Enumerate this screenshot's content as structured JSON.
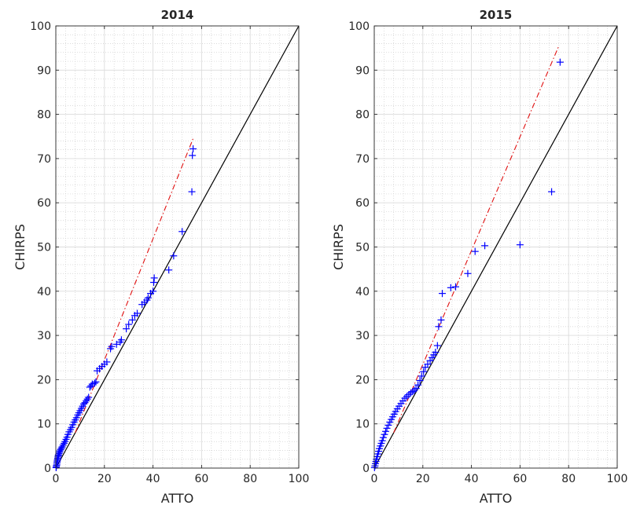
{
  "chart_data": [
    {
      "type": "scatter",
      "title": "2014",
      "xlabel": "ATTO",
      "ylabel": "CHIRPS",
      "xlim": [
        0,
        100
      ],
      "ylim": [
        0,
        100
      ],
      "x_ticks": [
        "0",
        "20",
        "40",
        "60",
        "80",
        "100"
      ],
      "y_ticks": [
        "0",
        "10",
        "20",
        "30",
        "40",
        "50",
        "60",
        "70",
        "80",
        "90",
        "100"
      ],
      "grid": true,
      "minor_grid": true,
      "colors": {
        "points": "#0000ff",
        "identity_line": "#000000",
        "fit_line": "#e01010"
      },
      "identity_line": {
        "x": [
          0,
          100
        ],
        "y": [
          0,
          100
        ]
      },
      "fit_line": {
        "x": [
          8,
          56.5
        ],
        "y": [
          8,
          74.5
        ]
      },
      "series": [
        {
          "marker": "+",
          "x": [
            0.1,
            0.2,
            0.3,
            0.4,
            0.5,
            0.6,
            0.7,
            0.8,
            0.9,
            1.0,
            1.1,
            1.3,
            1.5,
            1.7,
            2.0,
            2.3,
            2.6,
            3.0,
            3.4,
            3.8,
            4.2,
            4.6,
            5.0,
            5.5,
            6.0,
            6.5,
            7.0,
            7.5,
            8.0,
            8.5,
            9.0,
            9.5,
            10.0,
            10.5,
            11.0,
            11.5,
            12.0,
            12.5,
            13.0,
            13.5,
            14.0,
            14.5,
            15.0,
            16.0,
            16.5,
            17.0,
            18.0,
            19.0,
            20.0,
            21.0,
            22.5,
            23.0,
            25.0,
            26.5,
            27.0,
            29.0,
            30.0,
            31.5,
            32.5,
            33.5,
            35.5,
            36.5,
            37.5,
            38.0,
            39.0,
            40.0,
            40.3,
            40.5,
            46.5,
            48.5,
            52.0,
            56.0,
            56.2,
            56.5
          ],
          "y": [
            0.1,
            0.3,
            0.6,
            0.9,
            1.3,
            1.6,
            1.9,
            2.2,
            2.5,
            2.8,
            3.0,
            3.3,
            3.6,
            3.9,
            4.2,
            4.5,
            4.8,
            5.2,
            5.6,
            6.0,
            6.5,
            7.0,
            7.6,
            8.2,
            8.7,
            9.2,
            9.8,
            10.4,
            10.9,
            11.4,
            12.0,
            12.5,
            13.0,
            13.5,
            14.0,
            14.5,
            14.8,
            15.2,
            15.6,
            16.0,
            18.3,
            18.6,
            19.0,
            19.2,
            19.5,
            22.0,
            22.5,
            23.0,
            23.5,
            24.0,
            27.0,
            27.5,
            28.0,
            28.5,
            29.0,
            31.5,
            32.5,
            33.5,
            34.5,
            35.0,
            37.0,
            37.5,
            38.0,
            38.5,
            39.5,
            40.0,
            42.0,
            43.0,
            44.8,
            48.0,
            53.5,
            62.5,
            70.7,
            72.2
          ]
        }
      ]
    },
    {
      "type": "scatter",
      "title": "2015",
      "xlabel": "ATTO",
      "ylabel": "CHIRPS",
      "xlim": [
        0,
        100
      ],
      "ylim": [
        0,
        100
      ],
      "x_ticks": [
        "0",
        "20",
        "40",
        "60",
        "80",
        "100"
      ],
      "y_ticks": [
        "0",
        "10",
        "20",
        "30",
        "40",
        "50",
        "60",
        "70",
        "80",
        "90",
        "100"
      ],
      "grid": true,
      "minor_grid": true,
      "colors": {
        "points": "#0000ff",
        "identity_line": "#000000",
        "fit_line": "#e01010"
      },
      "identity_line": {
        "x": [
          0,
          100
        ],
        "y": [
          0,
          100
        ]
      },
      "fit_line": {
        "x": [
          8,
          76
        ],
        "y": [
          8,
          95.5
        ]
      },
      "series": [
        {
          "marker": "+",
          "x": [
            0.1,
            0.3,
            0.5,
            0.7,
            0.9,
            1.2,
            1.5,
            1.8,
            2.1,
            2.5,
            2.9,
            3.3,
            3.7,
            4.2,
            4.7,
            5.2,
            5.8,
            6.4,
            7.0,
            7.6,
            8.2,
            8.8,
            9.5,
            10.2,
            11.0,
            11.8,
            12.6,
            13.4,
            14.2,
            15.0,
            15.8,
            16.5,
            17.2,
            18.0,
            18.8,
            19.5,
            20.3,
            21.0,
            22.0,
            23.0,
            23.8,
            24.5,
            25.2,
            26.0,
            26.5,
            27.5,
            28.0,
            31.5,
            33.5,
            38.5,
            41.5,
            45.5,
            60.0,
            73.0,
            76.5
          ],
          "y": [
            0.1,
            0.5,
            1.0,
            1.5,
            2.0,
            2.6,
            3.2,
            3.8,
            4.4,
            5.0,
            5.6,
            6.2,
            6.9,
            7.6,
            8.3,
            9.0,
            9.7,
            10.4,
            11.0,
            11.6,
            12.2,
            12.8,
            13.4,
            14.0,
            14.6,
            15.2,
            15.8,
            16.2,
            16.6,
            17.0,
            17.3,
            17.6,
            18.0,
            18.8,
            19.8,
            20.8,
            21.8,
            22.8,
            23.5,
            24.3,
            25.0,
            25.6,
            26.2,
            27.7,
            32.0,
            33.5,
            39.5,
            40.8,
            41.0,
            44.0,
            49.0,
            50.3,
            50.5,
            62.5,
            91.8
          ]
        }
      ]
    }
  ]
}
